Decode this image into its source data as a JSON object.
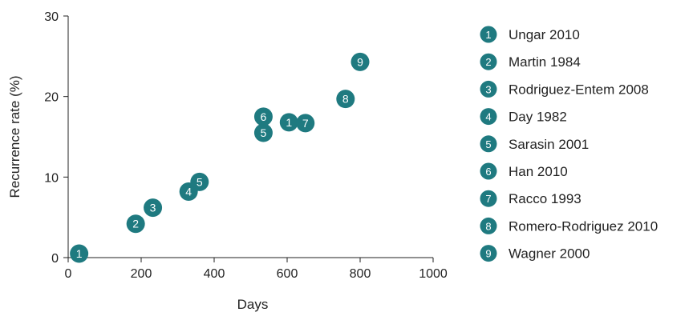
{
  "chart_data": {
    "type": "scatter",
    "title": "",
    "xlabel": "Days",
    "ylabel": "Recurrence rate (%)",
    "xlim": [
      0,
      1000
    ],
    "ylim": [
      0,
      30
    ],
    "x_ticks": [
      0,
      200,
      400,
      600,
      800,
      1000
    ],
    "y_ticks": [
      0,
      10,
      20,
      30
    ],
    "grid": false,
    "legend_position": "right",
    "marker_color": "#1f7a80",
    "legend": [
      {
        "num": "1",
        "label": "Ungar 2010"
      },
      {
        "num": "2",
        "label": "Martin 1984"
      },
      {
        "num": "3",
        "label": "Rodriguez-Entem 2008"
      },
      {
        "num": "4",
        "label": "Day 1982"
      },
      {
        "num": "5",
        "label": "Sarasin 2001"
      },
      {
        "num": "6",
        "label": "Han 2010"
      },
      {
        "num": "7",
        "label": "Racco 1993"
      },
      {
        "num": "8",
        "label": "Romero-Rodriguez 2010"
      },
      {
        "num": "9",
        "label": "Wagner 2000"
      }
    ],
    "points": [
      {
        "num": "1",
        "x": 30,
        "y": 0.5
      },
      {
        "num": "2",
        "x": 185,
        "y": 4.2
      },
      {
        "num": "3",
        "x": 232,
        "y": 6.2
      },
      {
        "num": "4",
        "x": 330,
        "y": 8.2
      },
      {
        "num": "5",
        "x": 360,
        "y": 9.4
      },
      {
        "num": "6",
        "x": 535,
        "y": 17.5
      },
      {
        "num": "5",
        "x": 535,
        "y": 15.5
      },
      {
        "num": "1",
        "x": 605,
        "y": 16.8
      },
      {
        "num": "7",
        "x": 650,
        "y": 16.7
      },
      {
        "num": "8",
        "x": 760,
        "y": 19.7
      },
      {
        "num": "9",
        "x": 800,
        "y": 24.3
      }
    ]
  }
}
